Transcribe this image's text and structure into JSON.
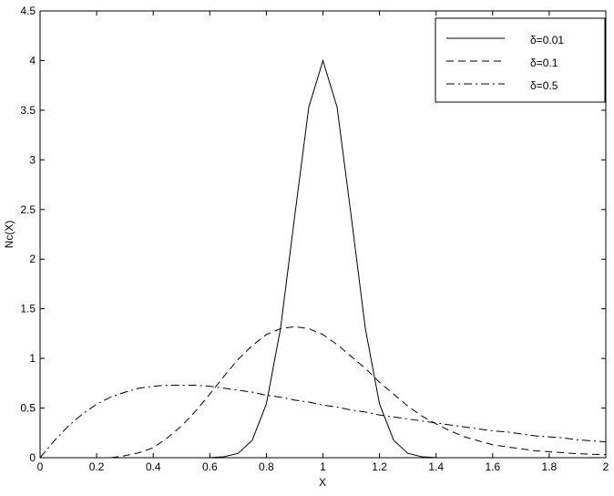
{
  "chart_data": {
    "type": "line",
    "xlabel": "X",
    "ylabel": "Nc(X)",
    "x": [
      0,
      0.05,
      0.1,
      0.15,
      0.2,
      0.25,
      0.3,
      0.35,
      0.4,
      0.45,
      0.5,
      0.55,
      0.6,
      0.65,
      0.7,
      0.75,
      0.8,
      0.85,
      0.9,
      0.95,
      1,
      1.05,
      1.1,
      1.15,
      1.2,
      1.25,
      1.3,
      1.35,
      1.4,
      1.45,
      1.5,
      1.55,
      1.6,
      1.65,
      1.7,
      1.75,
      1.8,
      1.85,
      1.9,
      1.95,
      2
    ],
    "series": [
      {
        "name": "δ=0.01",
        "color": "#000000",
        "dash": "solid",
        "values": [
          0,
          0,
          0,
          0,
          0,
          0,
          0,
          0,
          0,
          0,
          0,
          0,
          0.001,
          0.009,
          0.044,
          0.176,
          0.541,
          1.3,
          2.43,
          3.53,
          4,
          3.53,
          2.43,
          1.3,
          0.541,
          0.176,
          0.044,
          0.009,
          0.001,
          0,
          0,
          0,
          0,
          0,
          0,
          0,
          0,
          0,
          0,
          0,
          0
        ]
      },
      {
        "name": "δ=0.1",
        "color": "#000000",
        "dash": "dashed",
        "values": [
          0,
          0,
          0,
          0,
          0,
          0,
          0.02,
          0.05,
          0.1,
          0.2,
          0.32,
          0.47,
          0.64,
          0.82,
          0.99,
          1.13,
          1.24,
          1.3,
          1.32,
          1.3,
          1.24,
          1.14,
          1.02,
          0.9,
          0.76,
          0.64,
          0.52,
          0.42,
          0.34,
          0.27,
          0.21,
          0.17,
          0.13,
          0.11,
          0.09,
          0.07,
          0.06,
          0.05,
          0.04,
          0.035,
          0.03
        ]
      },
      {
        "name": "δ=0.5",
        "color": "#000000",
        "dash": "dashdot",
        "values": [
          0,
          0.17,
          0.32,
          0.44,
          0.54,
          0.61,
          0.66,
          0.7,
          0.72,
          0.73,
          0.73,
          0.73,
          0.72,
          0.7,
          0.68,
          0.66,
          0.63,
          0.61,
          0.58,
          0.56,
          0.53,
          0.51,
          0.48,
          0.46,
          0.43,
          0.41,
          0.39,
          0.37,
          0.35,
          0.33,
          0.31,
          0.29,
          0.27,
          0.26,
          0.24,
          0.22,
          0.21,
          0.2,
          0.18,
          0.17,
          0.16
        ]
      }
    ],
    "xlim": [
      0,
      2
    ],
    "xticks": [
      0,
      0.2,
      0.4,
      0.6,
      0.8,
      1,
      1.2,
      1.4,
      1.6,
      1.8,
      2
    ],
    "ylim": [
      0,
      4.5
    ],
    "yticks": [
      0,
      0.5,
      1,
      1.5,
      2,
      2.5,
      3,
      3.5,
      4,
      4.5
    ],
    "grid": false,
    "legend": "upper right"
  }
}
